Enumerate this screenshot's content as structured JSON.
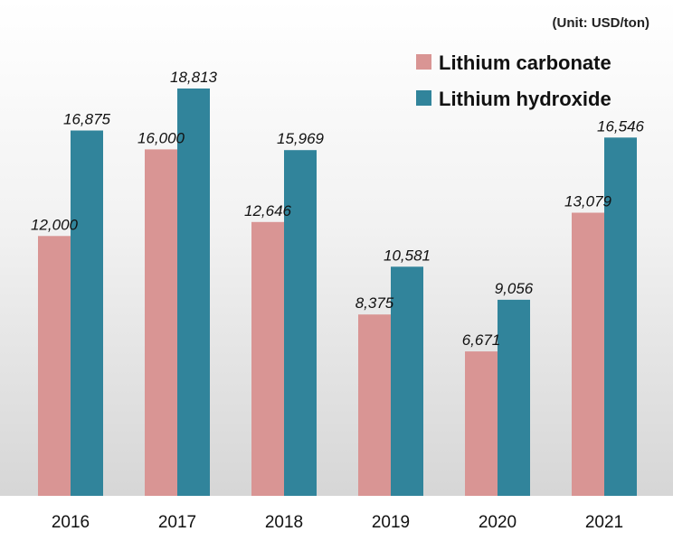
{
  "chart_data": {
    "type": "bar",
    "title": "",
    "unit": "(Unit: USD/ton)",
    "xlabel": "",
    "ylabel": "",
    "categories": [
      "2016",
      "2017",
      "2018",
      "2019",
      "2020",
      "2021"
    ],
    "series": [
      {
        "name": "Lithium carbonate",
        "color": "#d99594",
        "values": [
          12000,
          16000,
          12646,
          8375,
          6671,
          13079
        ],
        "labels": [
          "12,000",
          "16,000",
          "12,646",
          "8,375",
          "6,671",
          "13,079"
        ]
      },
      {
        "name": "Lithium hydroxide",
        "color": "#31849b",
        "values": [
          16875,
          18813,
          15969,
          10581,
          9056,
          16546
        ],
        "labels": [
          "16,875",
          "18,813",
          "15,969",
          "10,581",
          "9,056",
          "16,546"
        ]
      }
    ],
    "ylim": [
      0,
      21000
    ],
    "grid": false,
    "legend_position": "top-right"
  }
}
